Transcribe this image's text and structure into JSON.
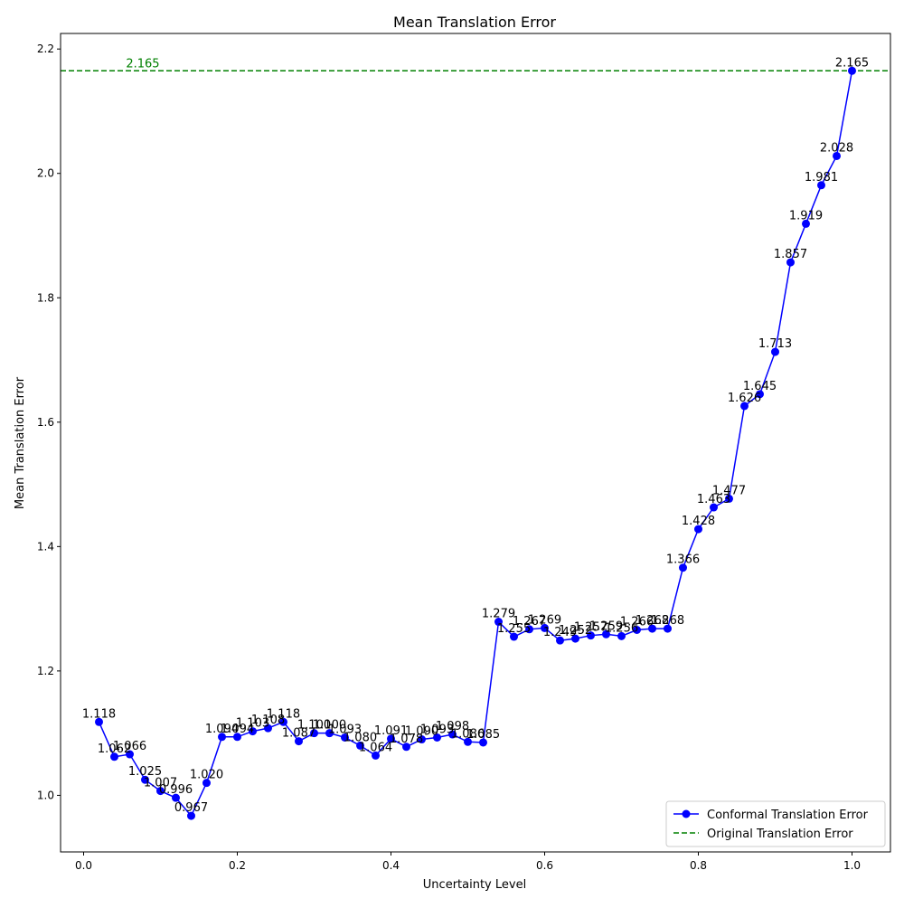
{
  "chart_data": {
    "type": "line",
    "title": "Mean Translation Error",
    "xlabel": "Uncertainty Level",
    "ylabel": "Mean Translation Error",
    "xlim": [
      -0.03,
      1.05
    ],
    "ylim": [
      0.909,
      2.225
    ],
    "x_ticks": [
      0.0,
      0.2,
      0.4,
      0.6,
      0.8,
      1.0
    ],
    "x_tick_labels": [
      "0.0",
      "0.2",
      "0.4",
      "0.6",
      "0.8",
      "1.0"
    ],
    "y_ticks": [
      1.0,
      1.2,
      1.4,
      1.6,
      1.8,
      2.0,
      2.2
    ],
    "y_tick_labels": [
      "1.0",
      "1.2",
      "1.4",
      "1.6",
      "1.8",
      "2.0",
      "2.2"
    ],
    "grid": false,
    "legend_position": "lower-right",
    "series": [
      {
        "name": "Conformal Translation Error",
        "color": "#0000ff",
        "marker": "circle",
        "x": [
          0.02,
          0.04,
          0.06,
          0.08,
          0.1,
          0.12,
          0.14,
          0.16,
          0.18,
          0.2,
          0.22,
          0.24,
          0.26,
          0.28,
          0.3,
          0.32,
          0.34,
          0.36,
          0.38,
          0.4,
          0.42,
          0.44,
          0.46,
          0.48,
          0.5,
          0.52,
          0.54,
          0.56,
          0.58,
          0.6,
          0.62,
          0.64,
          0.66,
          0.68,
          0.7,
          0.72,
          0.74,
          0.76,
          0.78,
          0.8,
          0.82,
          0.84,
          0.86,
          0.88,
          0.9,
          0.92,
          0.94,
          0.96,
          0.98,
          1.0
        ],
        "values": [
          1.118,
          1.062,
          1.066,
          1.025,
          1.007,
          0.996,
          0.967,
          1.02,
          1.094,
          1.094,
          1.103,
          1.108,
          1.118,
          1.087,
          1.1,
          1.1,
          1.093,
          1.08,
          1.064,
          1.091,
          1.078,
          1.09,
          1.093,
          1.098,
          1.086,
          1.085,
          1.279,
          1.255,
          1.267,
          1.269,
          1.249,
          1.252,
          1.257,
          1.259,
          1.256,
          1.266,
          1.268,
          1.268,
          1.366,
          1.428,
          1.463,
          1.477,
          1.626,
          1.645,
          1.713,
          1.857,
          1.919,
          1.981,
          2.028,
          2.165
        ],
        "labels": [
          "1.118",
          "1.062",
          "1.066",
          "1.025",
          "1.007",
          "0.996",
          "0.967",
          "1.020",
          "1.094",
          "1.094",
          "1.103",
          "1.108",
          "1.118",
          "1.087",
          "1.100",
          "1.100",
          "1.093",
          "1.080",
          "1.064",
          "1.091",
          "1.078",
          "1.090",
          "1.093",
          "1.098",
          "1.086",
          "1.085",
          "1.279",
          "1.255",
          "1.267",
          "1.269",
          "1.249",
          "1.252",
          "1.257",
          "1.259",
          "1.256",
          "1.266",
          "1.268",
          "1.268",
          "1.366",
          "1.428",
          "1.463",
          "1.477",
          "1.626",
          "1.645",
          "1.713",
          "1.857",
          "1.919",
          "1.981",
          "2.028",
          "2.165"
        ]
      },
      {
        "name": "Original Translation Error",
        "color": "#008000",
        "style": "dashed",
        "value": 2.165,
        "label": "2.165"
      }
    ]
  }
}
